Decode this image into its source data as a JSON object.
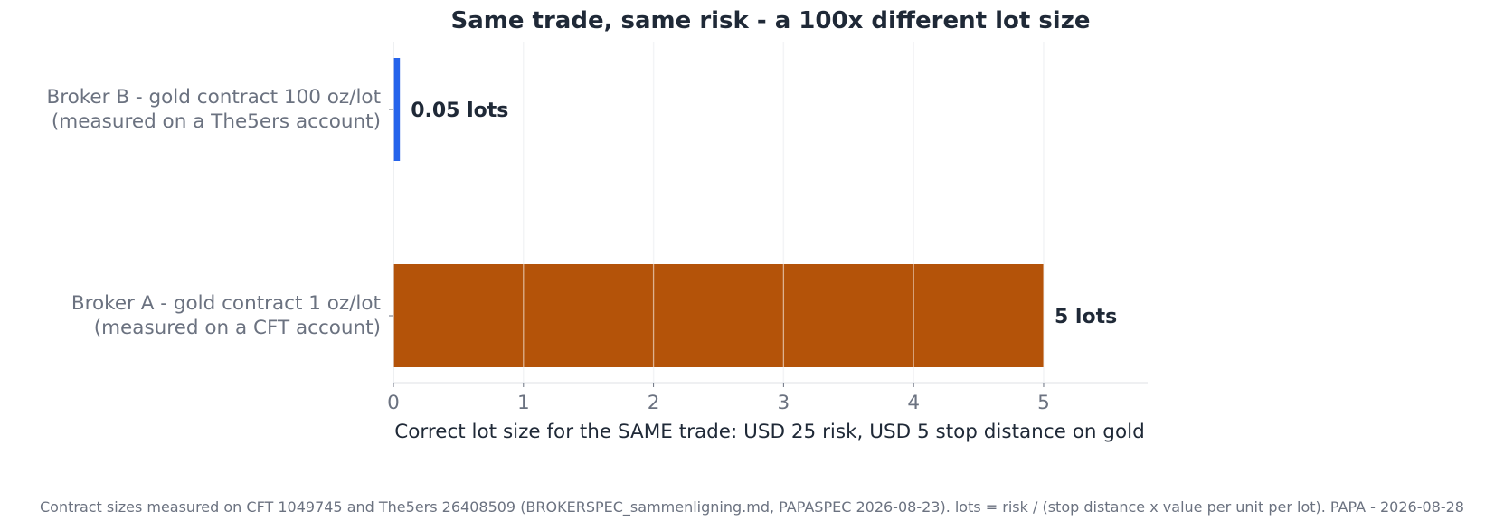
{
  "chart_data": {
    "type": "bar",
    "orientation": "horizontal",
    "title": "Same trade, same risk - a 100x different lot size",
    "xlabel": "Correct lot size for the SAME trade: USD 25 risk, USD 5 stop distance on gold",
    "ylabel": "",
    "xlim": [
      0,
      5.8
    ],
    "xticks": [
      0,
      1,
      2,
      3,
      4,
      5
    ],
    "grid": "vertical",
    "categories": [
      {
        "line1": "Broker B - gold contract 100 oz/lot",
        "line2": "(measured on a The5ers account)"
      },
      {
        "line1": "Broker A - gold contract 1 oz/lot",
        "line2": "(measured on a CFT account)"
      }
    ],
    "values": [
      0.05,
      5
    ],
    "data_labels": [
      "0.05 lots",
      "5 lots"
    ],
    "colors": [
      "#2563eb",
      "#b45309"
    ]
  },
  "footnote": "Contract sizes measured on CFT 1049745 and The5ers 26408509 (BROKERSPEC_sammenligning.md, PAPASPEC 2026-08-23). lots = risk / (stop distance x value per unit per lot). PAPA - 2026-08-28"
}
